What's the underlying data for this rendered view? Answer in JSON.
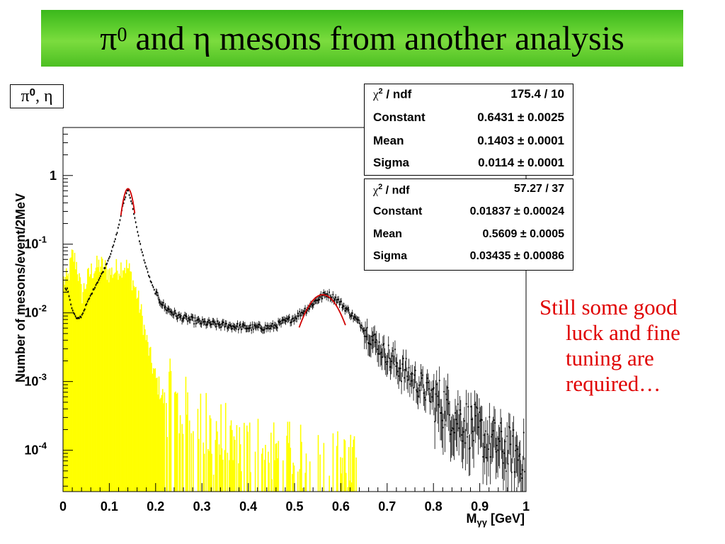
{
  "slide": {
    "title_pre": "π",
    "title_sup": "0",
    "title_post": " and η mesons from another analysis"
  },
  "hist_label": {
    "pi": "π",
    "sup": "0",
    "rest": ", η"
  },
  "fit_box_1": {
    "rows": [
      {
        "key_prefix": "χ",
        "key_sup": "2",
        "key_rest": " / ndf",
        "value": "175.4 / 10"
      },
      {
        "key": "Constant",
        "value": "0.6431 ± 0.0025"
      },
      {
        "key": "Mean",
        "value": "0.1403 ± 0.0001"
      },
      {
        "key": "Sigma",
        "value": "0.0114 ± 0.0001"
      }
    ]
  },
  "fit_box_2": {
    "rows": [
      {
        "key_prefix": "χ",
        "key_sup": "2",
        "key_rest": " / ndf",
        "value": "57.27 / 37"
      },
      {
        "key": "Constant",
        "value": "0.01837 ± 0.00024"
      },
      {
        "key": "Mean",
        "value": "0.5609 ± 0.0005"
      },
      {
        "key": "Sigma",
        "value": "0.03435 ± 0.00086"
      }
    ]
  },
  "side_note": {
    "lines": [
      "Still some good",
      "luck and fine",
      "tuning are",
      "required…"
    ],
    "color": "#e00000"
  },
  "colors": {
    "title_bar": "#5cc82a",
    "fill_histogram": "#ffff00",
    "data_points": "#000000",
    "fit_curve": "#d00000"
  },
  "chart_data": {
    "type": "histogram",
    "xlabel": "Mγγ [GeV]",
    "xlabel_main": "M",
    "xlabel_sub": "γγ",
    "xlabel_unit": " [GeV]",
    "ylabel": "Number of mesons/event/2MeV",
    "xlim": [
      0,
      1
    ],
    "ylim": [
      2.5e-05,
      5
    ],
    "yscale": "log",
    "x_ticks": [
      "0",
      "0.1",
      "0.2",
      "0.3",
      "0.4",
      "0.5",
      "0.6",
      "0.7",
      "0.8",
      "0.9",
      "1"
    ],
    "y_ticks": [
      {
        "value": 1,
        "base": "1",
        "exp": ""
      },
      {
        "value": 0.1,
        "base": "10",
        "exp": "-1"
      },
      {
        "value": 0.01,
        "base": "10",
        "exp": "-2"
      },
      {
        "value": 0.001,
        "base": "10",
        "exp": "-3"
      },
      {
        "value": 0.0001,
        "base": "10",
        "exp": "-4"
      }
    ],
    "series": [
      {
        "kind": "data points with error bars",
        "color": "#000000",
        "points": [
          [
            0.01,
            0.022
          ],
          [
            0.02,
            0.011
          ],
          [
            0.03,
            0.008
          ],
          [
            0.04,
            0.009
          ],
          [
            0.05,
            0.013
          ],
          [
            0.06,
            0.018
          ],
          [
            0.07,
            0.025
          ],
          [
            0.08,
            0.033
          ],
          [
            0.09,
            0.045
          ],
          [
            0.1,
            0.065
          ],
          [
            0.11,
            0.1
          ],
          [
            0.12,
            0.18
          ],
          [
            0.13,
            0.38
          ],
          [
            0.14,
            0.64
          ],
          [
            0.15,
            0.36
          ],
          [
            0.16,
            0.16
          ],
          [
            0.17,
            0.08
          ],
          [
            0.18,
            0.045
          ],
          [
            0.19,
            0.028
          ],
          [
            0.2,
            0.019
          ],
          [
            0.22,
            0.012
          ],
          [
            0.25,
            0.0088
          ],
          [
            0.3,
            0.0072
          ],
          [
            0.35,
            0.0066
          ],
          [
            0.4,
            0.0061
          ],
          [
            0.45,
            0.0062
          ],
          [
            0.5,
            0.0085
          ],
          [
            0.53,
            0.012
          ],
          [
            0.55,
            0.016
          ],
          [
            0.57,
            0.019
          ],
          [
            0.59,
            0.016
          ],
          [
            0.62,
            0.01
          ],
          [
            0.65,
            0.006
          ],
          [
            0.68,
            0.0034
          ],
          [
            0.7,
            0.0024
          ],
          [
            0.75,
            0.0012
          ],
          [
            0.8,
            0.0006
          ],
          [
            0.85,
            0.00032
          ],
          [
            0.9,
            0.00018
          ],
          [
            0.95,
            0.00011
          ],
          [
            1.0,
            8e-05
          ]
        ]
      },
      {
        "kind": "filled histogram (background)",
        "color": "#ffff00",
        "points": [
          [
            0.01,
            0.03
          ],
          [
            0.02,
            0.07
          ],
          [
            0.03,
            0.05
          ],
          [
            0.04,
            0.018
          ],
          [
            0.05,
            0.028
          ],
          [
            0.06,
            0.04
          ],
          [
            0.07,
            0.045
          ],
          [
            0.08,
            0.05
          ],
          [
            0.09,
            0.045
          ],
          [
            0.1,
            0.038
          ],
          [
            0.11,
            0.04
          ],
          [
            0.12,
            0.045
          ],
          [
            0.13,
            0.05
          ],
          [
            0.14,
            0.045
          ],
          [
            0.15,
            0.03
          ],
          [
            0.16,
            0.018
          ],
          [
            0.17,
            0.009
          ],
          [
            0.18,
            0.004
          ],
          [
            0.19,
            0.002
          ],
          [
            0.2,
            0.0011
          ],
          [
            0.22,
            0.0005
          ],
          [
            0.25,
            0.0003
          ],
          [
            0.3,
            0.00015
          ],
          [
            0.35,
            0.0001
          ],
          [
            0.4,
            8e-05
          ],
          [
            0.45,
            6e-05
          ],
          [
            0.5,
            5e-05
          ],
          [
            0.55,
            4e-05
          ],
          [
            0.6,
            4e-05
          ],
          [
            0.65,
            3e-05
          ]
        ]
      },
      {
        "kind": "gaussian fit",
        "name": "π0",
        "color": "#d00000",
        "constant": 0.6431,
        "mean": 0.1403,
        "sigma": 0.0114,
        "range": [
          0.125,
          0.155
        ]
      },
      {
        "kind": "gaussian fit",
        "name": "η",
        "color": "#d00000",
        "constant": 0.01837,
        "mean": 0.5609,
        "sigma": 0.03435,
        "range": [
          0.51,
          0.61
        ]
      }
    ]
  }
}
